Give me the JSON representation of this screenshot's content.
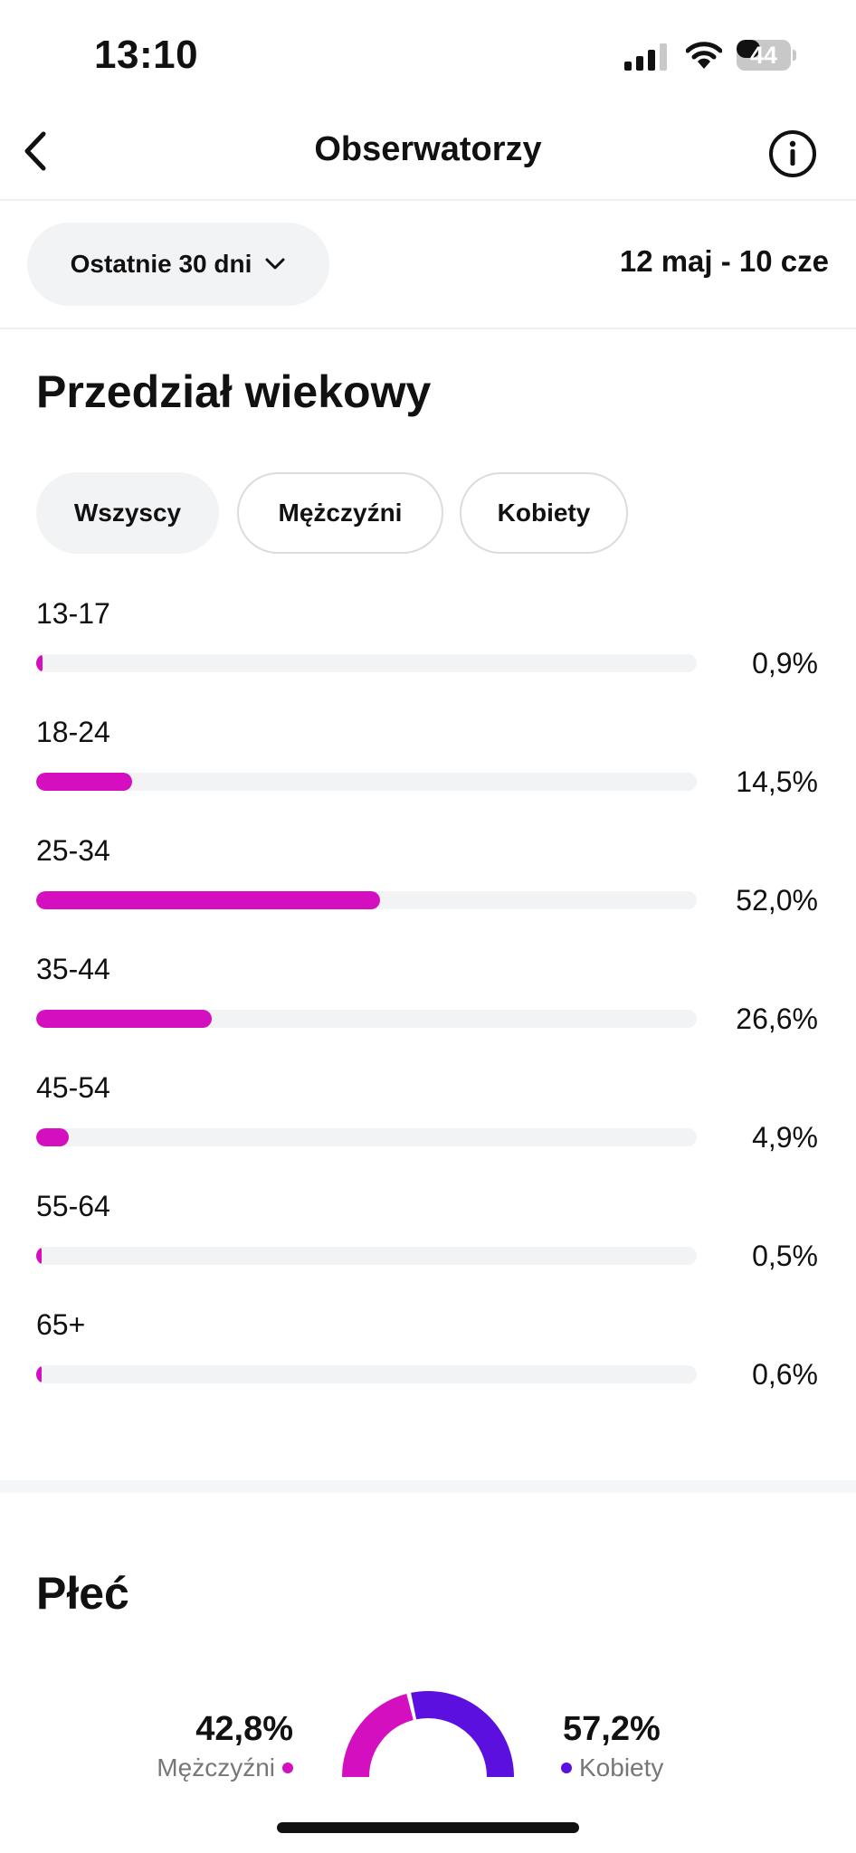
{
  "status_bar": {
    "time": "13:10",
    "battery": "44"
  },
  "header": {
    "title": "Obserwatorzy",
    "back_icon": "chevron-left-icon",
    "info_icon": "info-circle-icon"
  },
  "filter": {
    "range_label": "Ostatnie 30 dni",
    "date_range": "12 maj - 10 cze"
  },
  "age_section": {
    "title": "Przedział wiekowy",
    "tabs": [
      {
        "label": "Wszyscy",
        "active": true
      },
      {
        "label": "Mężczyźni",
        "active": false
      },
      {
        "label": "Kobiety",
        "active": false
      }
    ],
    "rows": [
      {
        "label": "13-17",
        "percent_text": "0,9%",
        "value": 0.9
      },
      {
        "label": "18-24",
        "percent_text": "14,5%",
        "value": 14.5
      },
      {
        "label": "25-34",
        "percent_text": "52,0%",
        "value": 52.0
      },
      {
        "label": "35-44",
        "percent_text": "26,6%",
        "value": 26.6
      },
      {
        "label": "45-54",
        "percent_text": "4,9%",
        "value": 4.9
      },
      {
        "label": "55-64",
        "percent_text": "0,5%",
        "value": 0.5
      },
      {
        "label": "65+",
        "percent_text": "0,6%",
        "value": 0.6
      }
    ],
    "bar_color": "#d30fc0"
  },
  "gender_section": {
    "title": "Płeć",
    "men": {
      "percent_text": "42,8%",
      "label": "Mężczyźni",
      "value": 42.8,
      "color": "#d30fc0"
    },
    "women": {
      "percent_text": "57,2%",
      "label": "Kobiety",
      "value": 57.2,
      "color": "#5b10e0"
    }
  }
}
